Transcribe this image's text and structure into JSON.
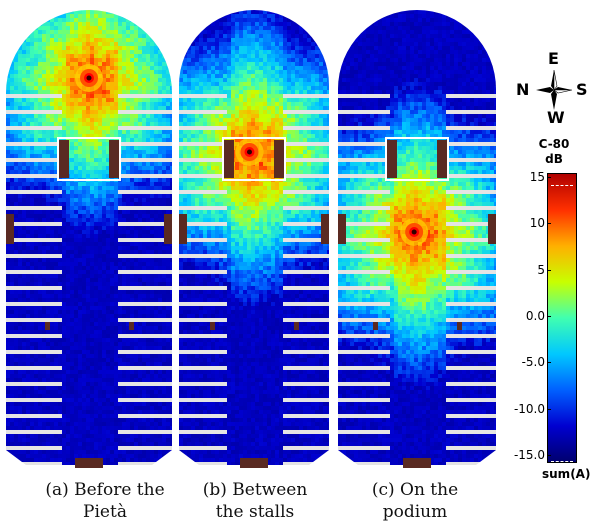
{
  "panels": [
    {
      "caption_line1": "(a) Before the",
      "caption_line2": "Pietà",
      "source_pos": "front"
    },
    {
      "caption_line1": "(b) Between",
      "caption_line2": "the stalls",
      "source_pos": "stalls"
    },
    {
      "caption_line1": "(c) On the",
      "caption_line2": "podium",
      "source_pos": "podium"
    }
  ],
  "compass": {
    "north": "N",
    "east": "E",
    "south": "S",
    "west": "W"
  },
  "colorbar": {
    "title_line1": "C-80",
    "title_line2": "dB",
    "ticks": [
      "15",
      "10",
      "5",
      "0.0",
      "-5.0",
      "-10.0",
      "-15.0"
    ],
    "footer": "sum(A)",
    "colors": [
      "#00006e",
      "#0000d0",
      "#0060ff",
      "#00c8ff",
      "#40ffb0",
      "#c8ff00",
      "#ffb000",
      "#ff3000",
      "#b00000"
    ]
  }
}
